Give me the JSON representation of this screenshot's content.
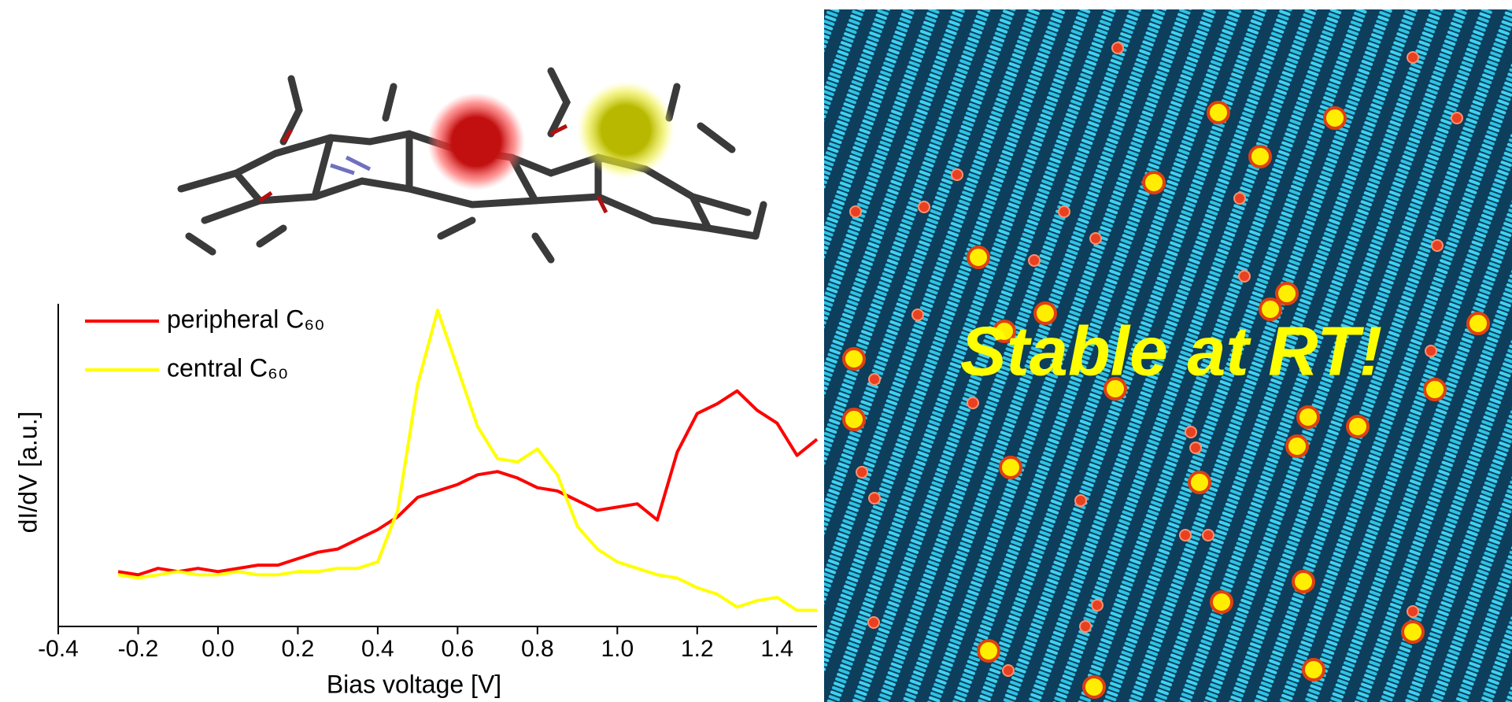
{
  "chart_data": {
    "type": "line",
    "xlabel": "Bias voltage [V]",
    "ylabel": "dI/dV [a.u.]",
    "x": [
      -0.25,
      -0.2,
      -0.15,
      -0.1,
      -0.05,
      0,
      0.05,
      0.1,
      0.15,
      0.2,
      0.25,
      0.3,
      0.35,
      0.4,
      0.45,
      0.5,
      0.55,
      0.6,
      0.65,
      0.7,
      0.75,
      0.8,
      0.85,
      0.9,
      0.95,
      1.0,
      1.05,
      1.1,
      1.15,
      1.2,
      1.25,
      1.3,
      1.35,
      1.4,
      1.45,
      1.5
    ],
    "series": [
      {
        "name": "peripheral C₆₀",
        "color": "#ff0000",
        "values": [
          1.7,
          1.6,
          1.8,
          1.7,
          1.8,
          1.7,
          1.8,
          1.9,
          1.9,
          2.1,
          2.3,
          2.4,
          2.7,
          3.0,
          3.4,
          4.0,
          4.2,
          4.4,
          4.7,
          4.8,
          4.6,
          4.3,
          4.2,
          3.9,
          3.6,
          3.7,
          3.8,
          3.3,
          5.4,
          6.6,
          6.9,
          7.3,
          6.7,
          6.3,
          5.3,
          5.8
        ]
      },
      {
        "name": "central C₆₀",
        "color": "#ffff00",
        "values": [
          1.6,
          1.5,
          1.6,
          1.7,
          1.6,
          1.6,
          1.7,
          1.6,
          1.6,
          1.7,
          1.7,
          1.8,
          1.8,
          2.0,
          3.6,
          7.5,
          9.8,
          8.0,
          6.2,
          5.2,
          5.1,
          5.5,
          4.7,
          3.1,
          2.4,
          2.0,
          1.8,
          1.6,
          1.5,
          1.2,
          1.0,
          0.6,
          0.8,
          0.9,
          0.5,
          0.5
        ]
      }
    ],
    "xlim": [
      -0.4,
      1.5
    ],
    "ylim": [
      0,
      10
    ],
    "xticks": [
      -0.4,
      -0.2,
      {
        "value": 0,
        "label": "0.0"
      },
      0.2,
      0.4,
      0.6,
      0.8,
      {
        "value": 1,
        "label": "1.0"
      },
      1.2,
      1.4
    ],
    "legend": "upper left"
  },
  "annotation": "Stable at RT!"
}
